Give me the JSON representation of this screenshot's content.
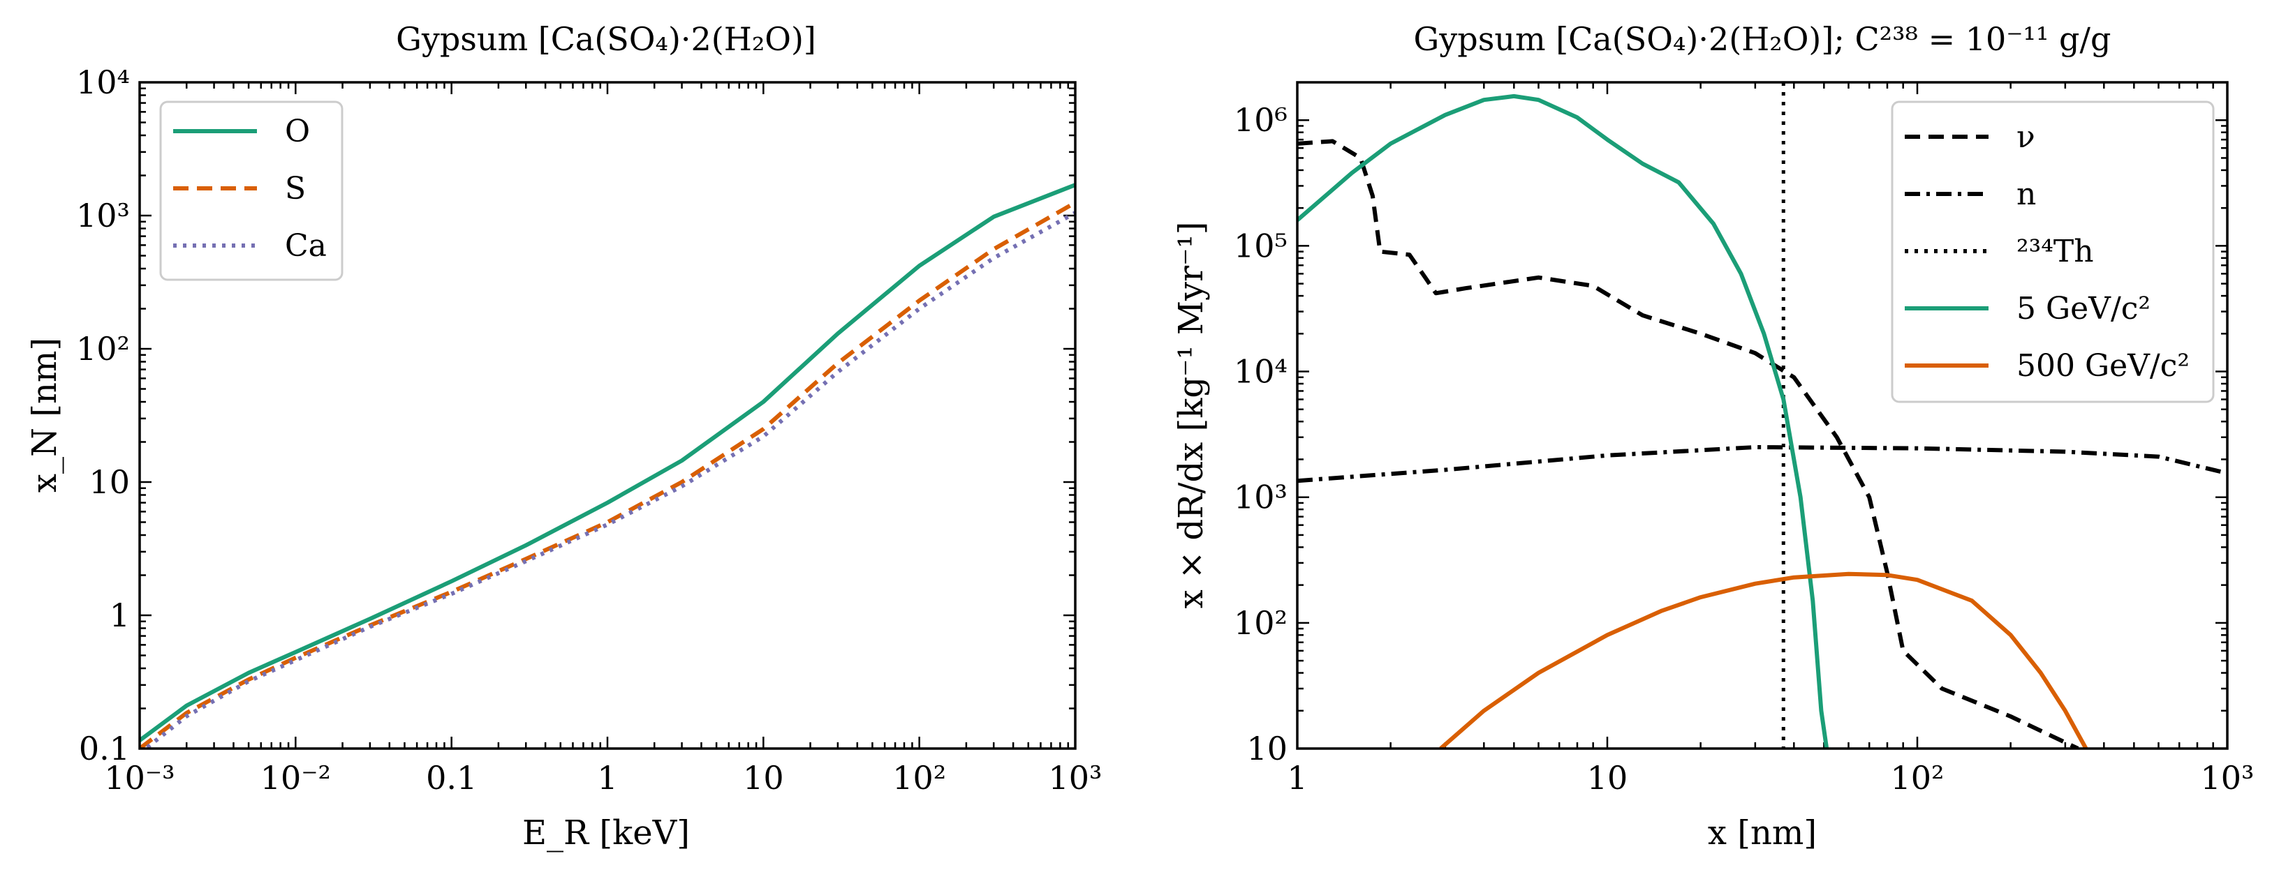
{
  "chart_data": [
    {
      "type": "line",
      "title": "Gypsum [Ca(SO₄)·2(H₂O)]",
      "xlabel": "E_R [keV]",
      "ylabel": "x_N [nm]",
      "xscale": "log",
      "yscale": "log",
      "xlim": [
        0.001,
        1000
      ],
      "ylim": [
        0.1,
        10000
      ],
      "xticks": [
        {
          "v": 0.001,
          "label": "10⁻³"
        },
        {
          "v": 0.01,
          "label": "10⁻²"
        },
        {
          "v": 0.1,
          "label": "0.1"
        },
        {
          "v": 1,
          "label": "1"
        },
        {
          "v": 10,
          "label": "10"
        },
        {
          "v": 100,
          "label": "10²"
        },
        {
          "v": 1000,
          "label": "10³"
        }
      ],
      "yticks": [
        {
          "v": 0.1,
          "label": "0.1"
        },
        {
          "v": 1,
          "label": "1"
        },
        {
          "v": 10,
          "label": "10"
        },
        {
          "v": 100,
          "label": "10²"
        },
        {
          "v": 1000,
          "label": "10³"
        },
        {
          "v": 10000,
          "label": "10⁴"
        }
      ],
      "legend_position": "top-left",
      "series": [
        {
          "name": "O",
          "color": "#1b9e77",
          "dash": "solid",
          "x": [
            0.001,
            0.002,
            0.005,
            0.01,
            0.03,
            0.1,
            0.3,
            1,
            3,
            10,
            30,
            100,
            300,
            1000
          ],
          "y": [
            0.115,
            0.21,
            0.37,
            0.53,
            0.94,
            1.8,
            3.35,
            7.0,
            14.5,
            40,
            130,
            420,
            980,
            1700
          ]
        },
        {
          "name": "S",
          "color": "#d95f02",
          "dash": "dashed",
          "x": [
            0.001,
            0.002,
            0.005,
            0.01,
            0.03,
            0.1,
            0.3,
            1,
            3,
            10,
            30,
            100,
            300,
            1000
          ],
          "y": [
            0.1,
            0.185,
            0.33,
            0.48,
            0.84,
            1.5,
            2.65,
            5.0,
            10.0,
            25,
            78,
            230,
            560,
            1250
          ]
        },
        {
          "name": "Ca",
          "color": "#7570b3",
          "dash": "dotted",
          "x": [
            0.001,
            0.002,
            0.005,
            0.01,
            0.03,
            0.1,
            0.3,
            1,
            3,
            10,
            30,
            100,
            300,
            1000
          ],
          "y": [
            0.092,
            0.175,
            0.32,
            0.46,
            0.82,
            1.45,
            2.55,
            4.8,
            9.3,
            22,
            67,
            200,
            480,
            1050
          ]
        }
      ]
    },
    {
      "type": "line",
      "title": "Gypsum [Ca(SO₄)·2(H₂O)]; C²³⁸ = 10⁻¹¹ g/g",
      "xlabel": "x [nm]",
      "ylabel": "x × dR/dx [kg⁻¹ Myr⁻¹]",
      "xscale": "log",
      "yscale": "log",
      "xlim": [
        1,
        1000
      ],
      "ylim": [
        10,
        2000000
      ],
      "xticks": [
        {
          "v": 1,
          "label": "1"
        },
        {
          "v": 10,
          "label": "10"
        },
        {
          "v": 100,
          "label": "10²"
        },
        {
          "v": 1000,
          "label": "10³"
        }
      ],
      "yticks": [
        {
          "v": 10,
          "label": "10"
        },
        {
          "v": 100,
          "label": "10²"
        },
        {
          "v": 1000,
          "label": "10³"
        },
        {
          "v": 10000,
          "label": "10⁴"
        },
        {
          "v": 100000,
          "label": "10⁵"
        },
        {
          "v": 1000000,
          "label": "10⁶"
        }
      ],
      "legend_position": "top-right",
      "vline": {
        "name": "²³⁴Th",
        "x": 37
      },
      "series": [
        {
          "name": "ν",
          "color": "#000000",
          "dash": "dashed",
          "x": [
            1,
            1.3,
            1.6,
            1.75,
            1.85,
            2.3,
            2.6,
            2.8,
            3.5,
            6,
            9,
            13,
            20,
            30,
            40,
            55,
            70,
            80,
            90,
            120,
            200,
            330
          ],
          "y": [
            650000,
            680000,
            500000,
            250000,
            90000,
            85000,
            55000,
            42000,
            46000,
            56000,
            48000,
            28000,
            20000,
            14000,
            9000,
            3000,
            1000,
            250,
            60,
            30,
            18,
            10
          ]
        },
        {
          "name": "n",
          "color": "#000000",
          "dash": "dashdot",
          "x": [
            1,
            3,
            10,
            30,
            100,
            300,
            600,
            1000
          ],
          "y": [
            1350,
            1650,
            2150,
            2500,
            2450,
            2300,
            2100,
            1550
          ]
        },
        {
          "name": "5 GeV/c²",
          "color": "#1b9e77",
          "dash": "solid",
          "x": [
            1,
            1.5,
            2,
            3,
            4,
            5,
            6,
            8,
            10,
            13,
            17,
            22,
            27,
            32,
            37,
            42,
            46,
            49,
            51
          ],
          "y": [
            160000,
            380000,
            650000,
            1100000,
            1450000,
            1550000,
            1450000,
            1050000,
            700000,
            450000,
            320000,
            150000,
            60000,
            20000,
            6000,
            1000,
            150,
            20,
            10
          ]
        },
        {
          "name": "500 GeV/c²",
          "color": "#d95f02",
          "dash": "solid",
          "x": [
            2.9,
            4,
            6,
            10,
            15,
            20,
            30,
            40,
            60,
            80,
            100,
            150,
            200,
            250,
            300,
            350
          ],
          "y": [
            10,
            20,
            40,
            80,
            125,
            160,
            205,
            230,
            245,
            240,
            220,
            150,
            80,
            40,
            20,
            10
          ]
        }
      ]
    }
  ]
}
